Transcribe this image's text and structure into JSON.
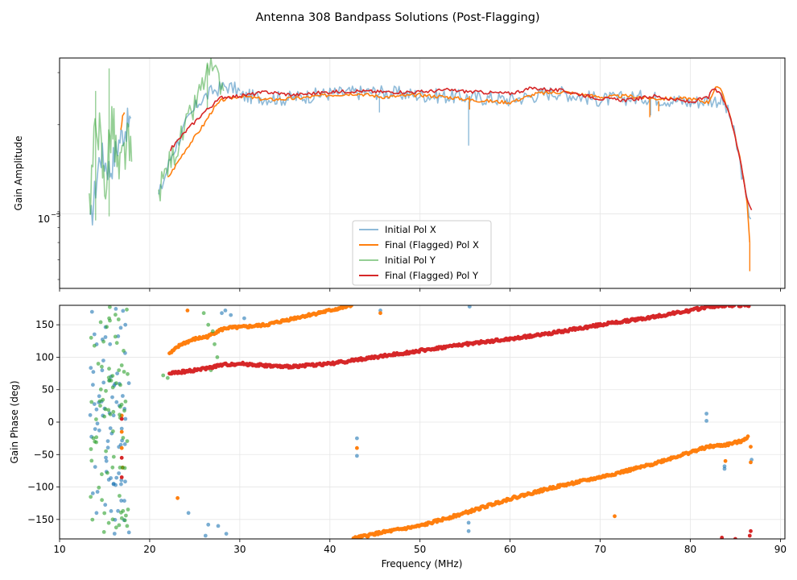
{
  "figure": {
    "suptitle": "Antenna 308 Bandpass Solutions (Post-Flagging)"
  },
  "colors": {
    "initial_x": "#1f77b4",
    "final_x": "#ff7f0e",
    "initial_y": "#2ca02c",
    "final_y": "#d62728"
  },
  "chart_data": [
    {
      "type": "line",
      "panel": "amplitude",
      "title": "",
      "xlabel": "",
      "ylabel": "Gain Amplitude",
      "yscale": "log",
      "xlim": [
        10,
        90.5
      ],
      "ylim": [
        0.00056,
        0.00336
      ],
      "x_ticks": [
        10,
        20,
        30,
        40,
        50,
        60,
        70,
        80,
        90
      ],
      "x_tick_labels_visible": false,
      "y_major_ticks": [
        0.001
      ],
      "y_major_tick_labels": [
        "10",
        "−3"
      ],
      "y_minor_ticks": [
        0.0006,
        0.0007,
        0.0008,
        0.0009,
        0.002,
        0.003
      ],
      "grid": true,
      "legend": {
        "position": "lower-center",
        "entries": [
          "Initial Pol X",
          "Final (Flagged) Pol X",
          "Initial Pol Y",
          "Final (Flagged) Pol Y"
        ]
      },
      "series": [
        {
          "name": "Initial Pol X",
          "color": "#1f77b4",
          "alpha": 0.5,
          "segments": [
            {
              "x": [
                13.4,
                14.5,
                15.6,
                16.7,
                17.9
              ],
              "y": [
                0.0009,
                0.0016,
                0.0014,
                0.0018,
                0.0021
              ]
            },
            {
              "x": [
                21.0,
                22.5,
                24.0,
                25.5,
                27.0,
                28.5,
                30.0
              ],
              "y": [
                0.00115,
                0.0016,
                0.002,
                0.0024,
                0.0026,
                0.0027,
                0.0026
              ]
            },
            {
              "x": [
                30,
                35,
                40,
                45,
                50,
                55,
                60,
                65,
                70,
                75,
                80,
                82,
                83.5,
                84.5,
                85.5,
                86.3,
                86.7
              ],
              "y": [
                0.0025,
                0.00245,
                0.00255,
                0.00258,
                0.00252,
                0.00248,
                0.00243,
                0.00258,
                0.00243,
                0.00248,
                0.00238,
                0.00242,
                0.00242,
                0.0021,
                0.0015,
                0.00108,
                0.00096
              ]
            }
          ],
          "spikes": [
            {
              "x": 45.5,
              "y0": 0.0025,
              "y1": 0.0022
            },
            {
              "x": 55.4,
              "y0": 0.0024,
              "y1": 0.0017
            },
            {
              "x": 75.6,
              "y0": 0.00245,
              "y1": 0.00215
            }
          ]
        },
        {
          "name": "Final (Flagged) Pol X",
          "color": "#ff7f0e",
          "alpha": 1.0,
          "segments": [
            {
              "x": [
                16.8,
                17.0,
                17.2
              ],
              "y": [
                0.00195,
                0.0021,
                0.0022
              ]
            },
            {
              "x": [
                22.0,
                24,
                26,
                27,
                28,
                30,
                33,
                36,
                40,
                43,
                46,
                50,
                53,
                56,
                60,
                63,
                66,
                70,
                73,
                76,
                80,
                82,
                82.8,
                83.5,
                84.5,
                85.5,
                86.3,
                86.6
              ],
              "y": [
                0.00132,
                0.00165,
                0.002,
                0.00225,
                0.00242,
                0.0025,
                0.00243,
                0.00245,
                0.00252,
                0.00255,
                0.00248,
                0.00252,
                0.00248,
                0.00242,
                0.00238,
                0.00255,
                0.00258,
                0.00248,
                0.0025,
                0.00245,
                0.00245,
                0.00238,
                0.00268,
                0.0026,
                0.0021,
                0.00155,
                0.0011,
                0.0008
              ]
            }
          ],
          "spikes": [
            {
              "x": 55.5,
              "y0": 0.0025,
              "y1": 0.00225
            },
            {
              "x": 75.5,
              "y0": 0.0025,
              "y1": 0.00212
            },
            {
              "x": 76.5,
              "y0": 0.0024,
              "y1": 0.00222
            },
            {
              "x": 86.6,
              "y0": 0.0008,
              "y1": 0.00064
            }
          ]
        },
        {
          "name": "Initial Pol Y",
          "color": "#2ca02c",
          "alpha": 0.5,
          "segments": [
            {
              "x": [
                13.3,
                14.2,
                15.0,
                15.8,
                16.6,
                17.4,
                18.0
              ],
              "y": [
                0.0011,
                0.0022,
                0.0012,
                0.0021,
                0.0013,
                0.0017,
                0.0015
              ]
            },
            {
              "x": [
                21.0,
                22.0,
                23.5,
                25.0,
                26.0,
                26.8,
                27.5,
                28.2
              ],
              "y": [
                0.00118,
                0.00145,
                0.0018,
                0.0023,
                0.0028,
                0.0031,
                0.0028,
                0.0026
              ]
            }
          ],
          "spikes": [
            {
              "x": 14.0,
              "y0": 0.00095,
              "y1": 0.0026
            },
            {
              "x": 15.5,
              "y0": 0.00098,
              "y1": 0.0031
            },
            {
              "x": 26.4,
              "y0": 0.00225,
              "y1": 0.0032
            }
          ]
        },
        {
          "name": "Final (Flagged) Pol Y",
          "color": "#d62728",
          "alpha": 1.0,
          "segments": [
            {
              "x": [
                22.3,
                24,
                26,
                28,
                30,
                33,
                36,
                40,
                43,
                46,
                50,
                53,
                56,
                60,
                62.5,
                66,
                70,
                73,
                76,
                80,
                82,
                82.6,
                83.5,
                84.5,
                85.5,
                86.2,
                86.8
              ],
              "y": [
                0.00165,
                0.0019,
                0.0022,
                0.00248,
                0.0025,
                0.00258,
                0.00252,
                0.00258,
                0.0026,
                0.00258,
                0.00258,
                0.00262,
                0.00258,
                0.00255,
                0.00266,
                0.0026,
                0.00245,
                0.00242,
                0.0025,
                0.00238,
                0.00248,
                0.00265,
                0.0025,
                0.00212,
                0.00155,
                0.00115,
                0.00103
              ]
            }
          ],
          "spikes": []
        }
      ]
    },
    {
      "type": "scatter",
      "panel": "phase",
      "title": "",
      "xlabel": "Frequency (MHz)",
      "ylabel": "Gain Phase (deg)",
      "xlim": [
        10,
        90.5
      ],
      "ylim": [
        -180,
        180
      ],
      "x_ticks": [
        10,
        20,
        30,
        40,
        50,
        60,
        70,
        80,
        90
      ],
      "x_tick_labels": [
        "10",
        "20",
        "30",
        "40",
        "50",
        "60",
        "70",
        "80",
        "90"
      ],
      "y_ticks": [
        -150,
        -100,
        -50,
        0,
        50,
        100,
        150
      ],
      "y_tick_labels": [
        "−150",
        "−100",
        "−50",
        "0",
        "50",
        "100",
        "150"
      ],
      "grid": true,
      "series": [
        {
          "name": "Initial Pol X",
          "color": "#1f77b4",
          "alpha": 0.6,
          "points": [
            [
              13.6,
              170
            ],
            [
              14.1,
              -140
            ],
            [
              14.4,
              40
            ],
            [
              14.8,
              10
            ],
            [
              15.2,
              -60
            ],
            [
              15.6,
              120
            ],
            [
              16.0,
              -95
            ],
            [
              16.4,
              75
            ],
            [
              16.9,
              -10
            ],
            [
              17.3,
              150
            ],
            [
              17.7,
              -170
            ],
            [
              28.0,
              168
            ],
            [
              28.4,
              172
            ],
            [
              29.0,
              165
            ],
            [
              30.5,
              160
            ],
            [
              45.6,
              172
            ],
            [
              55.5,
              178
            ],
            [
              43.0,
              -25
            ],
            [
              43.0,
              -52
            ],
            [
              55.4,
              -155
            ],
            [
              55.4,
              -168
            ],
            [
              81.8,
              13
            ],
            [
              81.8,
              2
            ],
            [
              83.8,
              -68
            ],
            [
              83.8,
              -72
            ],
            [
              86.8,
              -58
            ],
            [
              24.3,
              -140
            ],
            [
              26.5,
              -158
            ],
            [
              27.6,
              -160
            ],
            [
              28.5,
              -172
            ],
            [
              26.2,
              -175
            ]
          ]
        },
        {
          "name": "Final (Flagged) Pol X",
          "color": "#ff7f0e",
          "alpha": 1.0,
          "points": [
            [
              16.9,
              10
            ],
            [
              16.9,
              -15
            ],
            [
              16.9,
              -40
            ],
            [
              17.0,
              -70
            ],
            [
              23.1,
              -117
            ],
            [
              24.2,
              172
            ],
            [
              45.6,
              168
            ],
            [
              43.0,
              -40
            ],
            [
              71.6,
              -145
            ],
            [
              82.0,
              -38
            ],
            [
              83.9,
              -60
            ],
            [
              86.7,
              -38
            ],
            [
              86.7,
              -62
            ]
          ],
          "trend_segments": [
            {
              "x": [
                22.2,
                23.5,
                25.0,
                26.5,
                27.5,
                28.5,
                30,
                33,
                36,
                40,
                42.5
              ],
              "y": [
                105,
                120,
                128,
                132,
                140,
                145,
                146,
                150,
                160,
                172,
                180
              ]
            },
            {
              "x": [
                42.5,
                45,
                50,
                55,
                60,
                65,
                70,
                75,
                78,
                82,
                84,
                85.5,
                86.5
              ],
              "y": [
                -180,
                -172,
                -160,
                -140,
                -118,
                -100,
                -85,
                -68,
                -55,
                -38,
                -35,
                -30,
                -22
              ]
            }
          ]
        },
        {
          "name": "Initial Pol Y",
          "color": "#2ca02c",
          "alpha": 0.6,
          "points": [
            [
              13.5,
              130
            ],
            [
              13.9,
              -30
            ],
            [
              14.3,
              90
            ],
            [
              14.7,
              -120
            ],
            [
              15.1,
              20
            ],
            [
              15.5,
              160
            ],
            [
              15.9,
              -150
            ],
            [
              16.3,
              60
            ],
            [
              16.7,
              -70
            ],
            [
              17.1,
              110
            ],
            [
              17.5,
              -160
            ],
            [
              21.5,
              72
            ],
            [
              22.0,
              68
            ],
            [
              26.0,
              168
            ],
            [
              26.5,
              150
            ],
            [
              27.0,
              140
            ],
            [
              27.5,
              100
            ],
            [
              26.8,
              80
            ],
            [
              27.2,
              120
            ]
          ]
        },
        {
          "name": "Final (Flagged) Pol Y",
          "color": "#d62728",
          "alpha": 1.0,
          "points": [
            [
              16.9,
              -55
            ],
            [
              16.9,
              -85
            ],
            [
              16.9,
              5
            ],
            [
              83.5,
              -178
            ],
            [
              85.0,
              -180
            ],
            [
              86.6,
              -175
            ],
            [
              86.7,
              -168
            ]
          ],
          "trend_segments": [
            {
              "x": [
                22.2,
                24,
                26,
                28,
                30,
                35,
                40,
                45,
                50,
                55,
                60,
                65,
                70,
                75,
                80,
                82,
                84,
                86.6
              ],
              "y": [
                75,
                78,
                82,
                88,
                90,
                85,
                90,
                100,
                110,
                120,
                128,
                138,
                150,
                160,
                172,
                178,
                180,
                180
              ]
            }
          ]
        }
      ]
    }
  ]
}
